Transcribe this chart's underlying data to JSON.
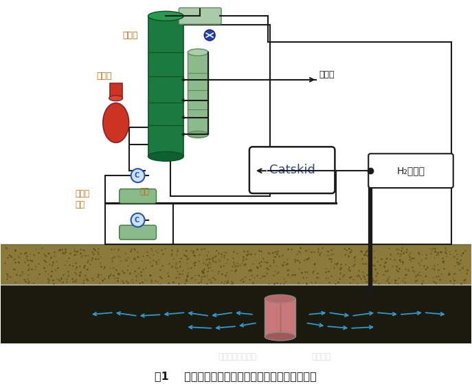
{
  "title": "图1    稠油地下原位裂解降黏高效开采新技术工艺图",
  "labels": {
    "yuanyou_ta": "原油塔",
    "yuanyou_lu": "原油炉",
    "yuanyou_di_bu_beng": "原油底\n部泵",
    "yuanyou": "原油",
    "jiejie_you": "裂解油",
    "catskid": "Catskid",
    "h2": "H₂发生器",
    "nano_label": "纳米催化吸附周边",
    "heat_label": "热扩张区"
  },
  "colors": {
    "tower_dark_green": "#1a7a40",
    "tower_light_green": "#8dba8d",
    "furnace_red": "#cc3322",
    "soil_top": "#8b7a3a",
    "underground_dark": "#1a1a0f",
    "blue_arrow": "#3399cc",
    "line_color": "#1a1a1a",
    "box_bg": "#ffffff",
    "pump_green": "#6aaa6a",
    "background": "#ffffff",
    "label_orange": "#cc6600"
  }
}
